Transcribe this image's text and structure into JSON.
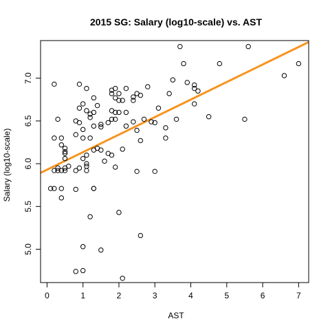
{
  "chart_data": {
    "type": "scatter",
    "title": "2015 SG: Salary (log10-scale) vs. AST",
    "xlabel": "AST",
    "ylabel": "Salary (log10-scale)",
    "xlim": [
      -0.18,
      7.28
    ],
    "ylim": [
      4.61,
      7.44
    ],
    "x_ticks": [
      0,
      1,
      2,
      3,
      4,
      5,
      6,
      7
    ],
    "y_ticks": [
      5.0,
      5.5,
      6.0,
      6.5,
      7.0
    ],
    "y_tick_labels": [
      "5.0",
      "5.5",
      "6.0",
      "6.5",
      "7.0"
    ],
    "grid": false,
    "fit_line": {
      "color": "#f7931e",
      "intercept": 5.93,
      "slope": 0.205
    },
    "points": [
      {
        "x": 0.1,
        "y": 5.71
      },
      {
        "x": 0.2,
        "y": 5.71
      },
      {
        "x": 0.2,
        "y": 6.93
      },
      {
        "x": 0.2,
        "y": 6.3
      },
      {
        "x": 0.2,
        "y": 5.92
      },
      {
        "x": 0.3,
        "y": 6.52
      },
      {
        "x": 0.3,
        "y": 5.95
      },
      {
        "x": 0.3,
        "y": 5.92
      },
      {
        "x": 0.4,
        "y": 5.6
      },
      {
        "x": 0.4,
        "y": 5.71
      },
      {
        "x": 0.4,
        "y": 5.92
      },
      {
        "x": 0.4,
        "y": 6.3
      },
      {
        "x": 0.4,
        "y": 6.22
      },
      {
        "x": 0.5,
        "y": 6.18
      },
      {
        "x": 0.5,
        "y": 6.14
      },
      {
        "x": 0.5,
        "y": 6.12
      },
      {
        "x": 0.5,
        "y": 6.06
      },
      {
        "x": 0.5,
        "y": 5.95
      },
      {
        "x": 0.5,
        "y": 5.92
      },
      {
        "x": 0.6,
        "y": 5.97
      },
      {
        "x": 0.8,
        "y": 4.74
      },
      {
        "x": 0.8,
        "y": 5.7
      },
      {
        "x": 0.8,
        "y": 5.92
      },
      {
        "x": 0.8,
        "y": 6.34
      },
      {
        "x": 0.8,
        "y": 6.5
      },
      {
        "x": 0.9,
        "y": 6.93
      },
      {
        "x": 0.9,
        "y": 6.65
      },
      {
        "x": 0.9,
        "y": 6.48
      },
      {
        "x": 0.9,
        "y": 5.95
      },
      {
        "x": 1.0,
        "y": 6.7
      },
      {
        "x": 1.0,
        "y": 6.4
      },
      {
        "x": 1.0,
        "y": 6.3
      },
      {
        "x": 1.0,
        "y": 6.06
      },
      {
        "x": 1.0,
        "y": 5.03
      },
      {
        "x": 1.0,
        "y": 4.75
      },
      {
        "x": 1.1,
        "y": 6.88
      },
      {
        "x": 1.1,
        "y": 6.62
      },
      {
        "x": 1.1,
        "y": 6.1
      },
      {
        "x": 1.1,
        "y": 6.0
      },
      {
        "x": 1.1,
        "y": 5.97
      },
      {
        "x": 1.1,
        "y": 5.92
      },
      {
        "x": 1.2,
        "y": 6.58
      },
      {
        "x": 1.2,
        "y": 6.54
      },
      {
        "x": 1.2,
        "y": 6.3
      },
      {
        "x": 1.2,
        "y": 5.38
      },
      {
        "x": 1.3,
        "y": 6.77
      },
      {
        "x": 1.3,
        "y": 6.6
      },
      {
        "x": 1.3,
        "y": 6.44
      },
      {
        "x": 1.3,
        "y": 6.16
      },
      {
        "x": 1.3,
        "y": 5.71
      },
      {
        "x": 1.3,
        "y": 5.71
      },
      {
        "x": 1.4,
        "y": 6.68
      },
      {
        "x": 1.4,
        "y": 6.18
      },
      {
        "x": 1.5,
        "y": 6.46
      },
      {
        "x": 1.5,
        "y": 6.43
      },
      {
        "x": 1.5,
        "y": 6.16
      },
      {
        "x": 1.5,
        "y": 4.99
      },
      {
        "x": 1.6,
        "y": 6.03
      },
      {
        "x": 1.7,
        "y": 6.48
      },
      {
        "x": 1.7,
        "y": 6.12
      },
      {
        "x": 1.8,
        "y": 6.86
      },
      {
        "x": 1.8,
        "y": 6.82
      },
      {
        "x": 1.8,
        "y": 6.62
      },
      {
        "x": 1.8,
        "y": 6.52
      },
      {
        "x": 1.8,
        "y": 6.1
      },
      {
        "x": 1.9,
        "y": 6.88
      },
      {
        "x": 1.9,
        "y": 6.77
      },
      {
        "x": 1.9,
        "y": 6.6
      },
      {
        "x": 1.9,
        "y": 6.52
      },
      {
        "x": 1.9,
        "y": 5.96
      },
      {
        "x": 2.0,
        "y": 6.82
      },
      {
        "x": 2.0,
        "y": 6.74
      },
      {
        "x": 2.0,
        "y": 6.6
      },
      {
        "x": 2.0,
        "y": 5.43
      },
      {
        "x": 2.1,
        "y": 6.74
      },
      {
        "x": 2.1,
        "y": 6.17
      },
      {
        "x": 2.1,
        "y": 4.66
      },
      {
        "x": 2.2,
        "y": 6.88
      },
      {
        "x": 2.2,
        "y": 6.6
      },
      {
        "x": 2.2,
        "y": 6.44
      },
      {
        "x": 2.4,
        "y": 6.78
      },
      {
        "x": 2.4,
        "y": 6.74
      },
      {
        "x": 2.4,
        "y": 6.49
      },
      {
        "x": 2.5,
        "y": 6.82
      },
      {
        "x": 2.5,
        "y": 6.39
      },
      {
        "x": 2.5,
        "y": 5.91
      },
      {
        "x": 2.6,
        "y": 6.8
      },
      {
        "x": 2.6,
        "y": 6.27
      },
      {
        "x": 2.6,
        "y": 5.16
      },
      {
        "x": 2.7,
        "y": 6.52
      },
      {
        "x": 2.8,
        "y": 6.9
      },
      {
        "x": 2.9,
        "y": 6.49
      },
      {
        "x": 3.0,
        "y": 6.48
      },
      {
        "x": 3.0,
        "y": 5.91
      },
      {
        "x": 3.1,
        "y": 6.65
      },
      {
        "x": 3.3,
        "y": 6.42
      },
      {
        "x": 3.3,
        "y": 6.3
      },
      {
        "x": 3.4,
        "y": 6.82
      },
      {
        "x": 3.5,
        "y": 6.98
      },
      {
        "x": 3.6,
        "y": 6.52
      },
      {
        "x": 3.7,
        "y": 7.37
      },
      {
        "x": 3.8,
        "y": 7.17
      },
      {
        "x": 3.9,
        "y": 6.95
      },
      {
        "x": 4.1,
        "y": 6.92
      },
      {
        "x": 4.1,
        "y": 6.88
      },
      {
        "x": 4.1,
        "y": 6.7
      },
      {
        "x": 4.2,
        "y": 6.85
      },
      {
        "x": 4.5,
        "y": 6.55
      },
      {
        "x": 4.8,
        "y": 7.17
      },
      {
        "x": 5.5,
        "y": 6.52
      },
      {
        "x": 5.6,
        "y": 7.37
      },
      {
        "x": 6.6,
        "y": 7.03
      },
      {
        "x": 7.0,
        "y": 7.17
      }
    ]
  }
}
